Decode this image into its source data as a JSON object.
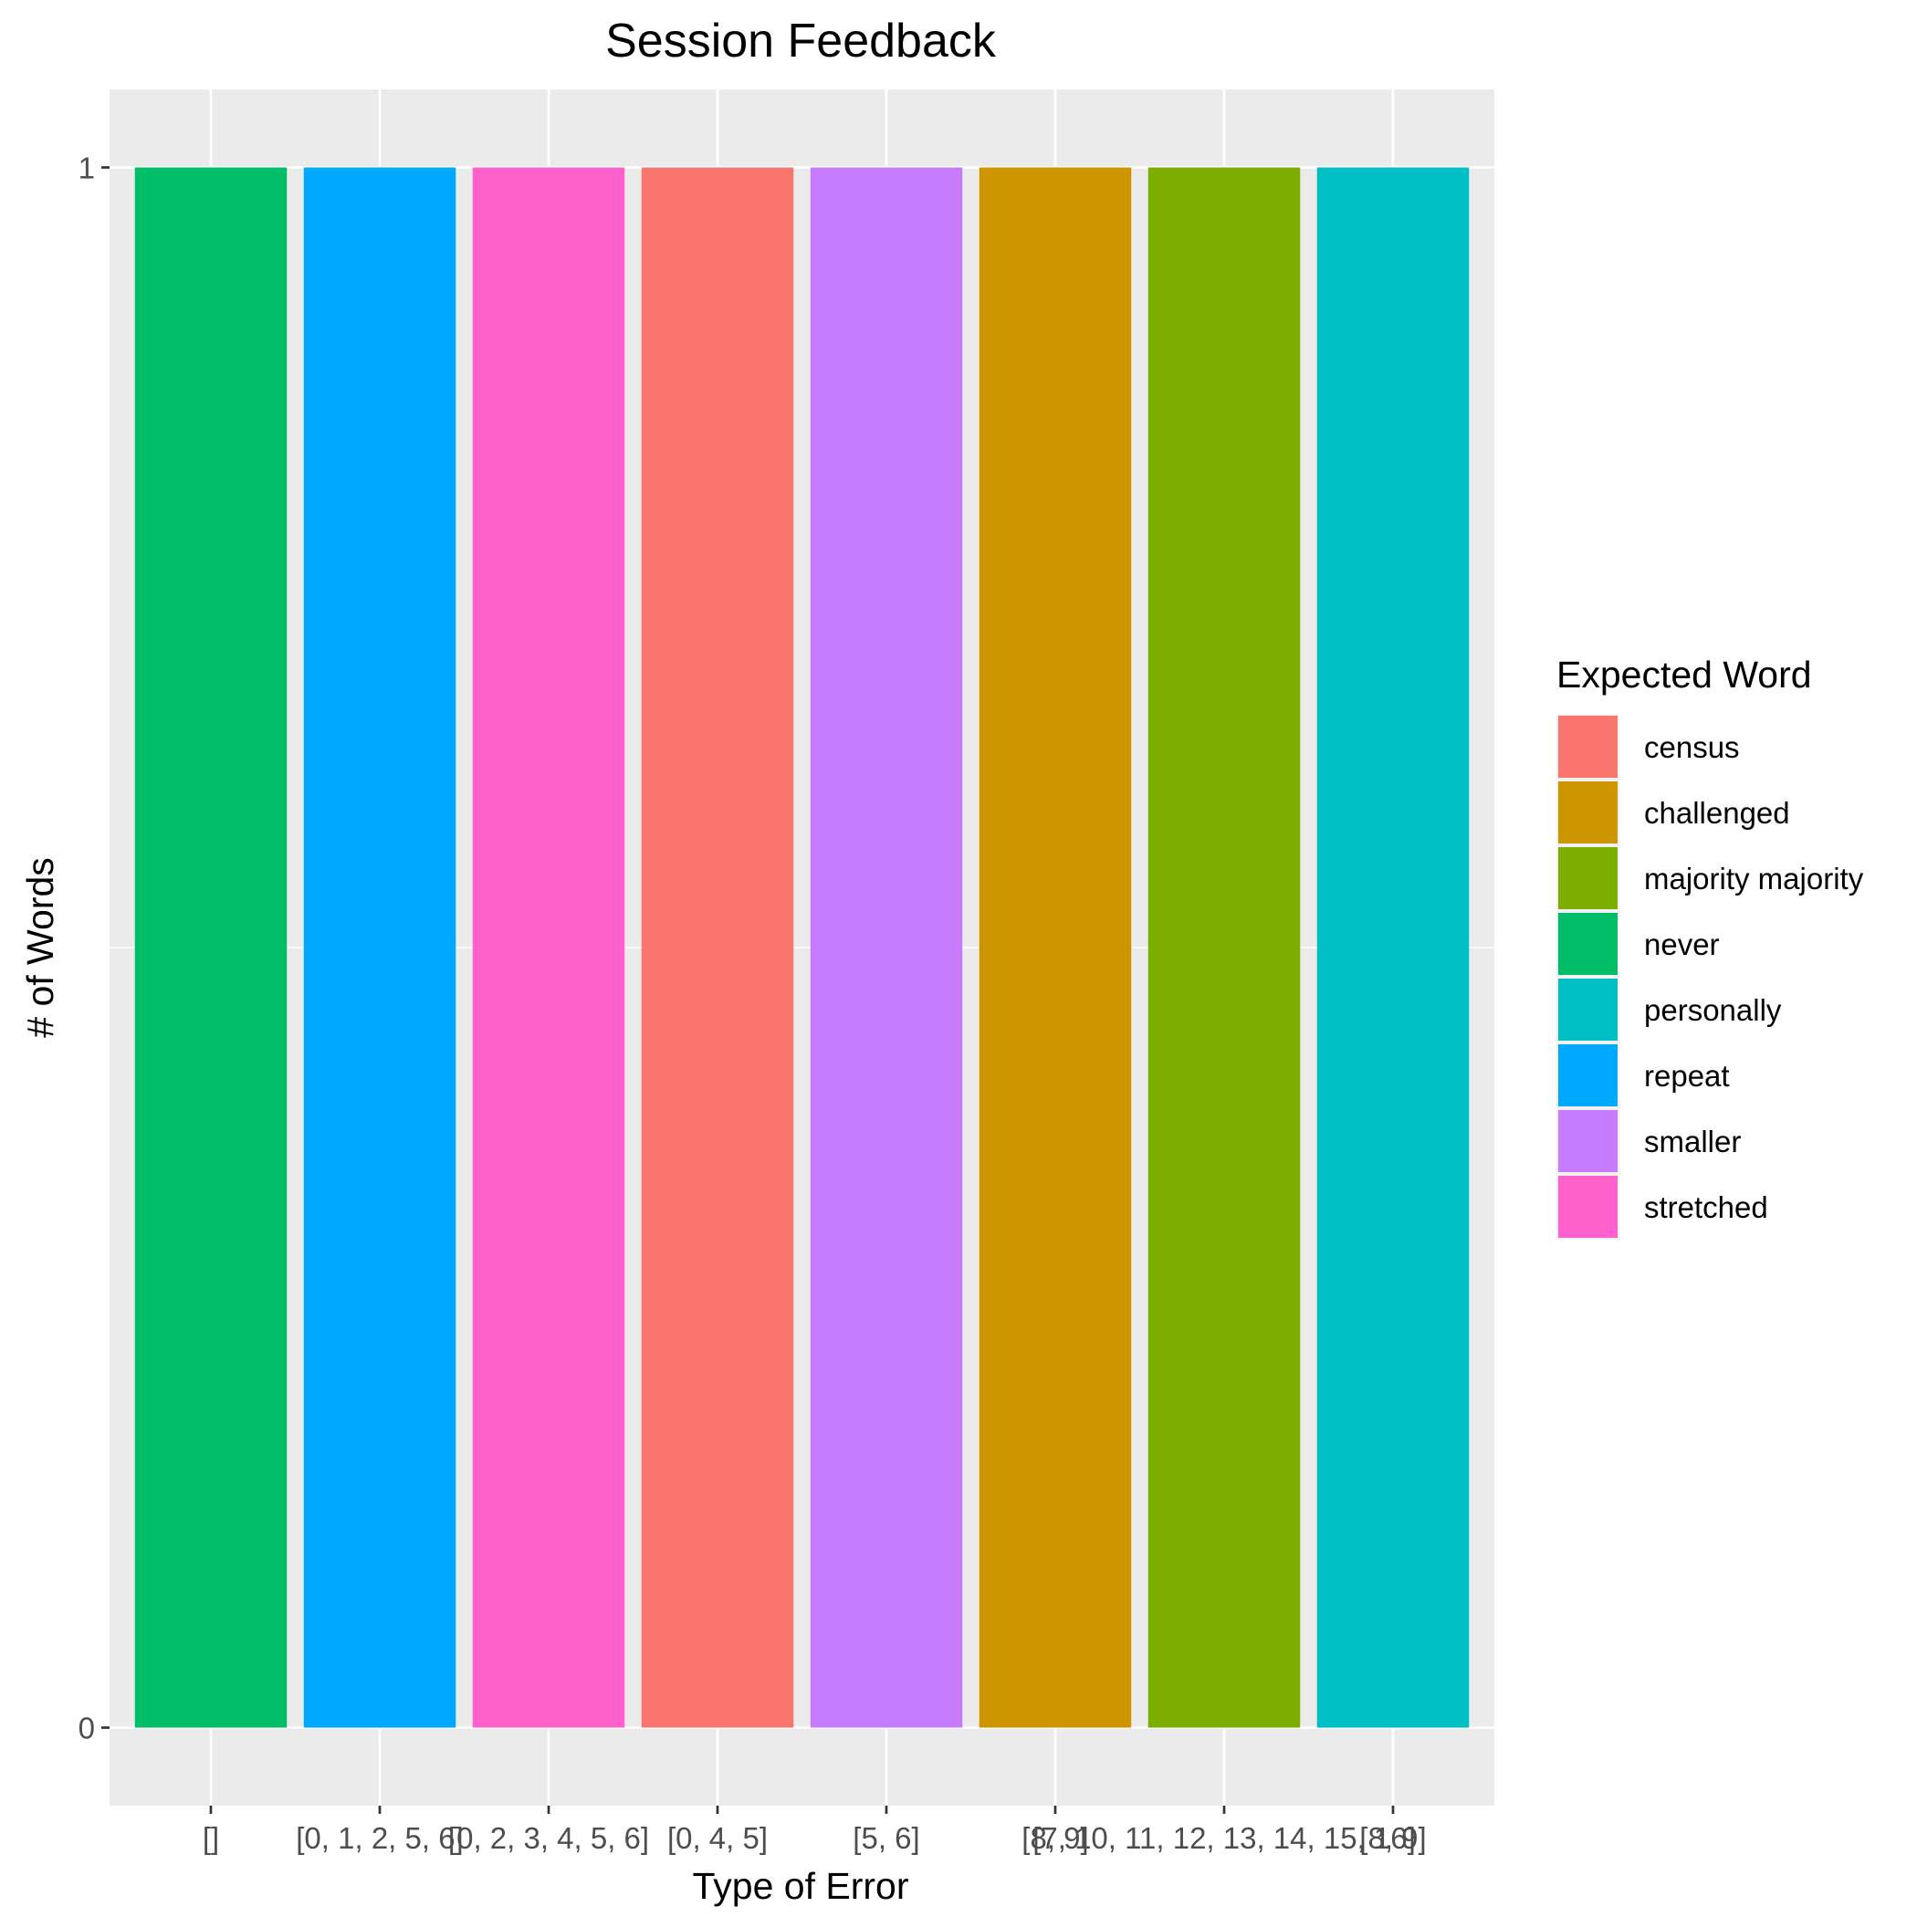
{
  "chart_data": {
    "type": "bar",
    "title": "Session Feedback",
    "xlabel": "Type of Error",
    "ylabel": "# of Words",
    "categories": [
      "[]",
      "[0, 1, 2, 5, 6]",
      "[0, 2, 3, 4, 5, 6]",
      "[0, 4, 5]",
      "[5, 6]",
      "[8, 9]",
      "[7, 10, 11, 12, 13, 14, 15, 16]",
      "[8, 9]"
    ],
    "values": [
      1,
      1,
      1,
      1,
      1,
      1,
      1,
      1
    ],
    "fill_words": [
      "never",
      "repeat",
      "stretched",
      "census",
      "smaller",
      "challenged",
      "majority majority",
      "personally"
    ],
    "ylim": [
      -0.05,
      1.05
    ],
    "yticks": [
      0,
      1
    ],
    "grid": true,
    "legend": {
      "title": "Expected Word",
      "position": "right",
      "entries": [
        {
          "label": "census",
          "color": "#F8766D"
        },
        {
          "label": "challenged",
          "color": "#CD9600"
        },
        {
          "label": "majority majority",
          "color": "#7CAE00"
        },
        {
          "label": "never",
          "color": "#00BE67"
        },
        {
          "label": "personally",
          "color": "#00BFC4"
        },
        {
          "label": "repeat",
          "color": "#00A9FF"
        },
        {
          "label": "smaller",
          "color": "#C77CFF"
        },
        {
          "label": "stretched",
          "color": "#FF61CC"
        }
      ]
    }
  }
}
